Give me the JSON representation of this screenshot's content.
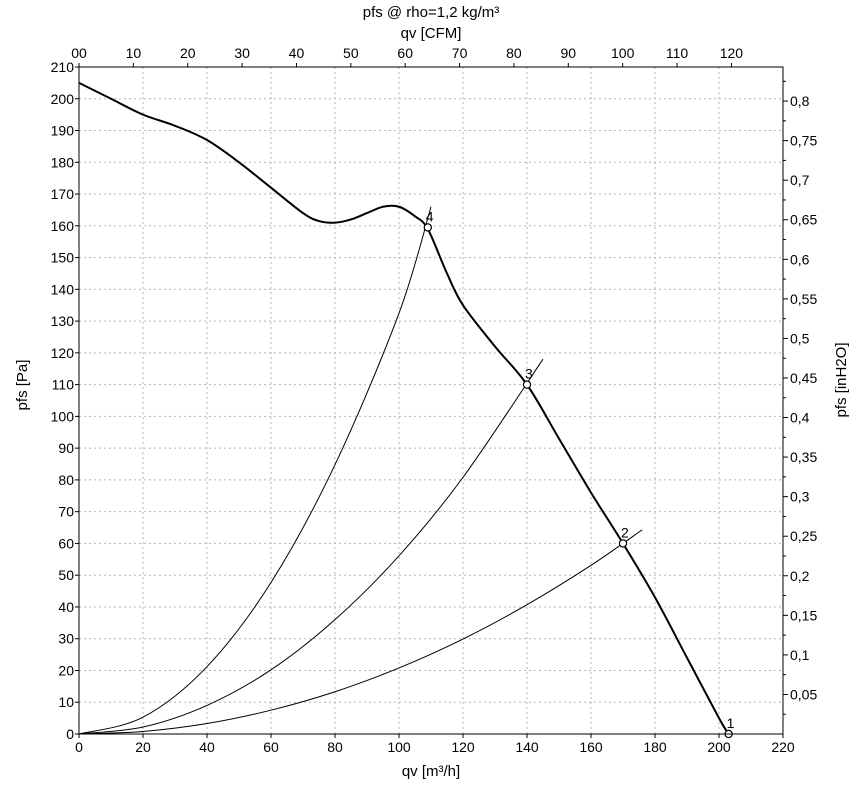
{
  "header": {
    "title": "pfs @ rho=1,2 kg/m³",
    "top_axis_label": "qv [CFM]"
  },
  "chart_data": {
    "type": "line",
    "xlabel": "qv [m³/h]",
    "ylabel": "pfs [Pa]",
    "ylabel_right": "pfs [inH2O]",
    "xlim": [
      0,
      220
    ],
    "ylim": [
      0,
      210
    ],
    "x_ticks": [
      "0",
      "20",
      "40",
      "60",
      "80",
      "100",
      "120",
      "140",
      "160",
      "180",
      "200",
      "220"
    ],
    "y_ticks": [
      "0",
      "10",
      "20",
      "30",
      "40",
      "50",
      "60",
      "70",
      "80",
      "90",
      "100",
      "110",
      "120",
      "130",
      "140",
      "150",
      "160",
      "170",
      "180",
      "190",
      "200",
      "210"
    ],
    "top_axis": {
      "label": "qv [CFM]",
      "ticks": [
        {
          "value": 0,
          "label": "00"
        },
        {
          "value": 10,
          "label": "10"
        },
        {
          "value": 20,
          "label": "20"
        },
        {
          "value": 30,
          "label": "30"
        },
        {
          "value": 40,
          "label": "40"
        },
        {
          "value": 50,
          "label": "50"
        },
        {
          "value": 60,
          "label": "60"
        },
        {
          "value": 70,
          "label": "70"
        },
        {
          "value": 80,
          "label": "80"
        },
        {
          "value": 90,
          "label": "90"
        },
        {
          "value": 100,
          "label": "100"
        },
        {
          "value": 110,
          "label": "110"
        },
        {
          "value": 120,
          "label": "120"
        }
      ]
    },
    "right_axis": {
      "label": "pfs [inH2O]",
      "ticks": [
        {
          "value": 0.05,
          "label": "0,05"
        },
        {
          "value": 0.1,
          "label": "0,1"
        },
        {
          "value": 0.15,
          "label": "0,15"
        },
        {
          "value": 0.2,
          "label": "0,2"
        },
        {
          "value": 0.25,
          "label": "0,25"
        },
        {
          "value": 0.3,
          "label": "0,3"
        },
        {
          "value": 0.35,
          "label": "0,35"
        },
        {
          "value": 0.4,
          "label": "0,4"
        },
        {
          "value": 0.45,
          "label": "0,45"
        },
        {
          "value": 0.5,
          "label": "0,5"
        },
        {
          "value": 0.55,
          "label": "0,55"
        },
        {
          "value": 0.6,
          "label": "0,6"
        },
        {
          "value": 0.65,
          "label": "0,65"
        },
        {
          "value": 0.7,
          "label": "0,7"
        },
        {
          "value": 0.75,
          "label": "0,75"
        },
        {
          "value": 0.8,
          "label": "0,8"
        }
      ]
    },
    "grid": true,
    "series": [
      {
        "x": [
          0,
          10,
          20,
          30,
          40,
          50,
          60,
          70,
          75,
          80,
          85,
          90,
          95,
          100,
          105,
          109,
          115,
          120,
          130,
          140,
          150,
          160,
          170,
          180,
          190,
          200,
          203
        ],
        "y": [
          205,
          200,
          195,
          191.5,
          187,
          180,
          172,
          164,
          161.5,
          161,
          162,
          164,
          166,
          166,
          163,
          159,
          145,
          135,
          122,
          110,
          93,
          76,
          60,
          43,
          24,
          5,
          0
        ]
      },
      {
        "x": [
          0,
          20,
          40,
          60,
          80,
          100,
          110
        ],
        "y": [
          0,
          5.3,
          21.2,
          47.7,
          84.8,
          132.5,
          166
        ]
      },
      {
        "x": [
          0,
          20,
          40,
          60,
          80,
          100,
          120,
          145
        ],
        "y": [
          0,
          2.2,
          9,
          20.2,
          36,
          56.1,
          80.8,
          118
        ]
      },
      {
        "x": [
          0,
          20,
          40,
          60,
          80,
          100,
          120,
          140,
          160,
          176
        ],
        "y": [
          0,
          0.8,
          3.3,
          7.5,
          13.3,
          20.8,
          29.9,
          40.7,
          53.1,
          64.3
        ]
      }
    ],
    "operating_points": [
      {
        "label": "1",
        "x": 203,
        "y": 0
      },
      {
        "label": "2",
        "x": 170,
        "y": 60
      },
      {
        "label": "3",
        "x": 140,
        "y": 110
      },
      {
        "label": "4",
        "x": 109,
        "y": 159.5
      }
    ]
  }
}
